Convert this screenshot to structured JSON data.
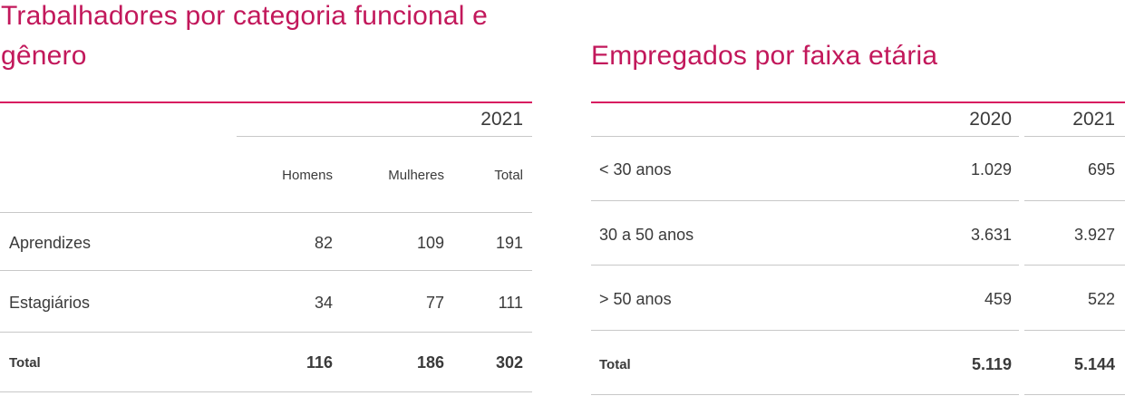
{
  "left_table": {
    "title": "Trabalhadores por categoria funcional e gênero",
    "year": "2021",
    "columns": [
      "Homens",
      "Mulheres",
      "Total"
    ],
    "rows": [
      {
        "label": "Aprendizes",
        "values": [
          "82",
          "109",
          "191"
        ]
      },
      {
        "label": "Estagiários",
        "values": [
          "34",
          "77",
          "111"
        ]
      },
      {
        "label": "Total",
        "values": [
          "116",
          "186",
          "302"
        ]
      }
    ]
  },
  "right_table": {
    "title": "Empregados por faixa etária",
    "years": [
      "2020",
      "2021"
    ],
    "rows": [
      {
        "label": "< 30 anos",
        "values": [
          "1.029",
          "695"
        ]
      },
      {
        "label": "30 a 50 anos",
        "values": [
          "3.631",
          "3.927"
        ]
      },
      {
        "label": "> 50 anos",
        "values": [
          "459",
          "522"
        ]
      },
      {
        "label": "Total",
        "values": [
          "5.119",
          "5.144"
        ]
      }
    ]
  },
  "colors": {
    "accent": "#c2185b",
    "rule": "#d81b60",
    "divider": "#c8c8c8",
    "text": "#3a3a3a"
  }
}
